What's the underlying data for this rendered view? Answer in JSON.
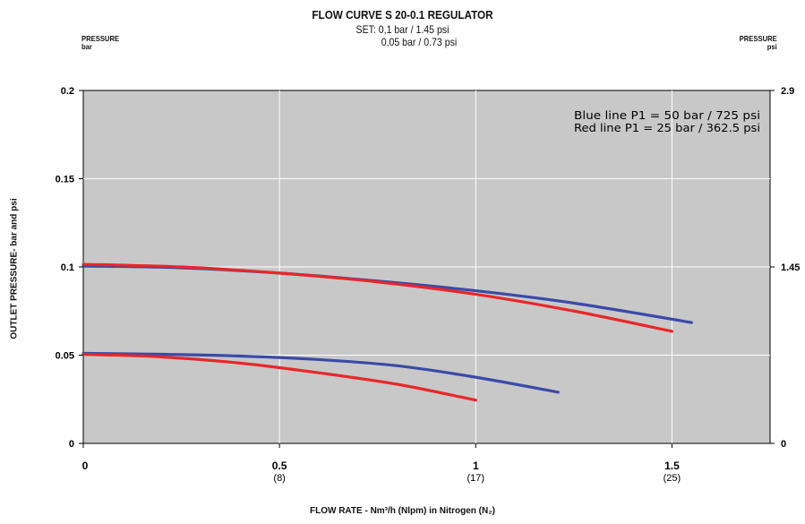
{
  "header": {
    "title": "FLOW CURVE S 20-0.1 REGULATOR",
    "set_line1": "SET: 0,1 bar / 1.45 psi",
    "set_line2": "0,05 bar / 0.73 psi",
    "left_unit_line1": "PRESSURE",
    "left_unit_line2": "bar",
    "right_unit_line1": "PRESSURE",
    "right_unit_line2": "psi"
  },
  "chart_data": {
    "type": "line",
    "title": "FLOW CURVE S 20-0.1 REGULATOR",
    "xlabel": "FLOW RATE - Nm³/h (Nlpm) in Nitrogen (N₂)",
    "ylabel": "OUTLET PRESSURE- bar and psi",
    "xlim": [
      0,
      1.75
    ],
    "ylim": [
      0,
      0.2
    ],
    "x_ticks": [
      {
        "value": 0,
        "label": "0",
        "sub": ""
      },
      {
        "value": 0.5,
        "label": "0.5",
        "sub": "(8)"
      },
      {
        "value": 1,
        "label": "1",
        "sub": "(17)"
      },
      {
        "value": 1.5,
        "label": "1.5",
        "sub": "(25)"
      }
    ],
    "y_ticks": [
      {
        "value": 0,
        "label": "0"
      },
      {
        "value": 0.05,
        "label": "0.05"
      },
      {
        "value": 0.1,
        "label": "0.1"
      },
      {
        "value": 0.15,
        "label": "0.15"
      },
      {
        "value": 0.2,
        "label": "0.2"
      }
    ],
    "y2_ticks": [
      {
        "value": 0,
        "label": "0"
      },
      {
        "value": 0.1,
        "label": "1.45"
      },
      {
        "value": 0.2,
        "label": "2.9"
      }
    ],
    "grid": true,
    "plot_background": "#c8c8c8",
    "legend": {
      "placement": "top-right",
      "lines": [
        "Blue line P1 = 50 bar / 725 psi",
        "Red line P1 = 25 bar / 362.5 psi"
      ]
    },
    "series": [
      {
        "color": "#3a4aa8",
        "x": [
          0,
          0.25,
          0.5,
          0.75,
          1.0,
          1.25,
          1.55
        ],
        "y": [
          0.1005,
          0.0995,
          0.0965,
          0.092,
          0.0865,
          0.0795,
          0.0685
        ]
      },
      {
        "color": "#e8272a",
        "x": [
          0,
          0.25,
          0.5,
          0.75,
          1.0,
          1.25,
          1.5
        ],
        "y": [
          0.1015,
          0.1,
          0.0965,
          0.0915,
          0.0845,
          0.075,
          0.0635
        ]
      },
      {
        "color": "#3a4aa8",
        "x": [
          0,
          0.2,
          0.4,
          0.6,
          0.8,
          1.0,
          1.21
        ],
        "y": [
          0.051,
          0.0505,
          0.0495,
          0.0475,
          0.044,
          0.0375,
          0.029
        ]
      },
      {
        "color": "#e8272a",
        "x": [
          0,
          0.2,
          0.4,
          0.6,
          0.8,
          1.0
        ],
        "y": [
          0.0505,
          0.049,
          0.0455,
          0.04,
          0.0335,
          0.0245
        ]
      }
    ]
  }
}
